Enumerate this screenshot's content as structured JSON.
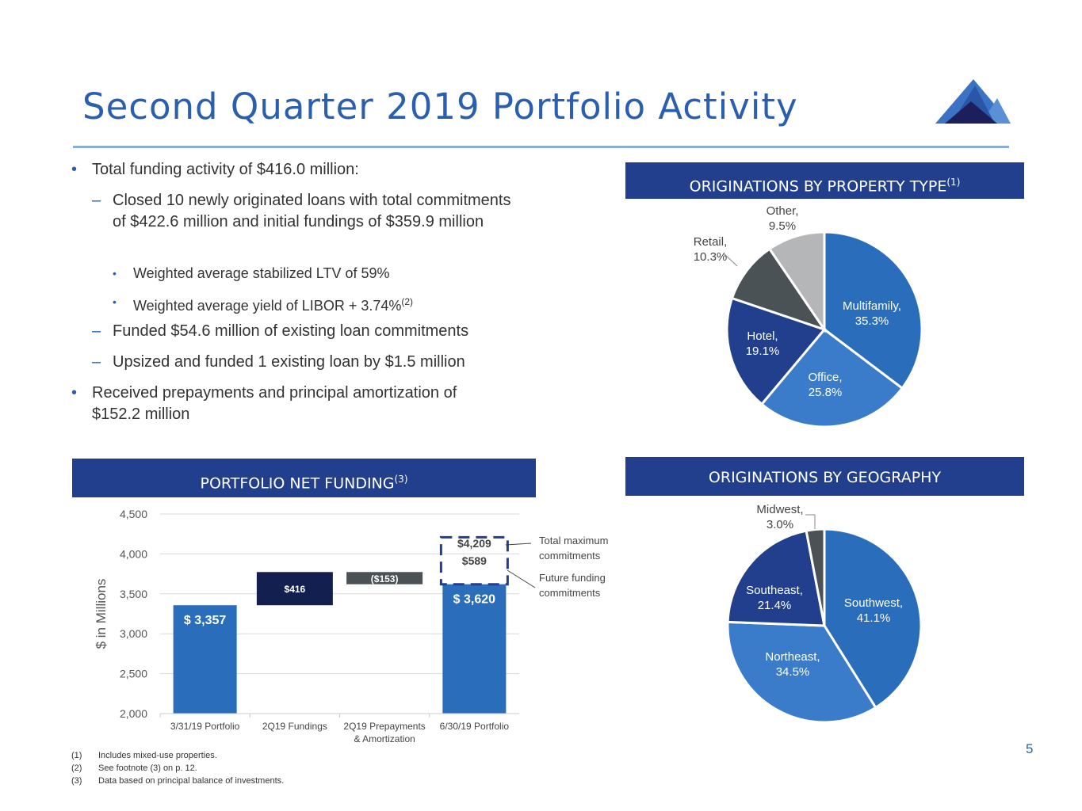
{
  "title": "Second Quarter 2019 Portfolio Activity",
  "page_number": "5",
  "bullets": [
    {
      "text": "Total funding activity of $416.0 million:"
    },
    {
      "text": "Closed 10 newly originated loans with total commitments of $422.6 million and initial fundings of $359.9 million"
    },
    {
      "text": "Weighted average stabilized LTV of 59%"
    },
    {
      "text": "Weighted average yield of LIBOR + 3.74%",
      "sup": "(2)"
    },
    {
      "text": "Funded $54.6 million of existing loan commitments"
    },
    {
      "text": "Upsized and funded 1 existing loan by $1.5 million"
    },
    {
      "text": "Received prepayments and principal amortization of $152.2 million"
    }
  ],
  "footnotes": [
    {
      "num": "(1)",
      "text": "Includes mixed-use properties."
    },
    {
      "num": "(2)",
      "text": "See footnote (3) on p. 12."
    },
    {
      "num": "(3)",
      "text": "Data based on principal balance of investments."
    }
  ],
  "colors": {
    "brand": "#213f8c",
    "title": "#2a5fb0",
    "blue": "#2a6ebb",
    "light_blue": "#3a7cc9",
    "gray": "#4a5256",
    "light_gray": "#b5b6b8",
    "navy": "#13204f"
  },
  "chart_data": [
    {
      "type": "pie",
      "title": "ORIGINATIONS BY PROPERTY TYPE",
      "title_sup": "(1)",
      "slices": [
        {
          "label": "Multifamily,",
          "pct": "35.3%",
          "value": 35.3,
          "color": "#2a6ebb"
        },
        {
          "label": "Office,",
          "pct": "25.8%",
          "value": 25.8,
          "color": "#3a7cc9"
        },
        {
          "label": "Hotel,",
          "pct": "19.1%",
          "value": 19.1,
          "color": "#213f8c"
        },
        {
          "label": "Retail,",
          "pct": "10.3%",
          "value": 10.3,
          "color": "#4a5256"
        },
        {
          "label": "Other,",
          "pct": "9.5%",
          "value": 9.5,
          "color": "#b5b6b8"
        }
      ]
    },
    {
      "type": "bar",
      "subtype": "waterfall",
      "title": "PORTFOLIO NET FUNDING",
      "title_sup": "(3)",
      "ylabel": "$ in Millions",
      "ylim": [
        2000,
        4500
      ],
      "yticks": [
        "2,000",
        "2,500",
        "3,000",
        "3,500",
        "4,000",
        "4,500"
      ],
      "grid": true,
      "categories": [
        "3/31/19 Portfolio",
        "2Q19 Fundings",
        "2Q19 Prepayments & Amortization",
        "6/30/19 Portfolio"
      ],
      "bars": [
        {
          "start": 2000,
          "end": 3357,
          "label": "$ 3,357",
          "color": "#2a6ebb"
        },
        {
          "start": 3357,
          "end": 3773,
          "label": "$416",
          "color": "#13204f"
        },
        {
          "start": 3620,
          "end": 3773,
          "label": "($153)",
          "color": "#4a5256"
        },
        {
          "start": 2000,
          "end": 3620,
          "label": "$ 3,620",
          "color": "#2a6ebb"
        }
      ],
      "future_funding": {
        "value": 589,
        "label": "$589",
        "total": 4209,
        "total_label": "$4,209"
      },
      "annotations": [
        "Total maximum commitments",
        "Future funding commitments"
      ]
    },
    {
      "type": "pie",
      "title": "ORIGINATIONS BY GEOGRAPHY",
      "slices": [
        {
          "label": "Southwest,",
          "pct": "41.1%",
          "value": 41.1,
          "color": "#2a6ebb"
        },
        {
          "label": "Northeast,",
          "pct": "34.5%",
          "value": 34.5,
          "color": "#3a7cc9"
        },
        {
          "label": "Southeast,",
          "pct": "21.4%",
          "value": 21.4,
          "color": "#213f8c"
        },
        {
          "label": "Midwest,",
          "pct": "3.0%",
          "value": 3.0,
          "color": "#4a5256"
        }
      ]
    }
  ]
}
